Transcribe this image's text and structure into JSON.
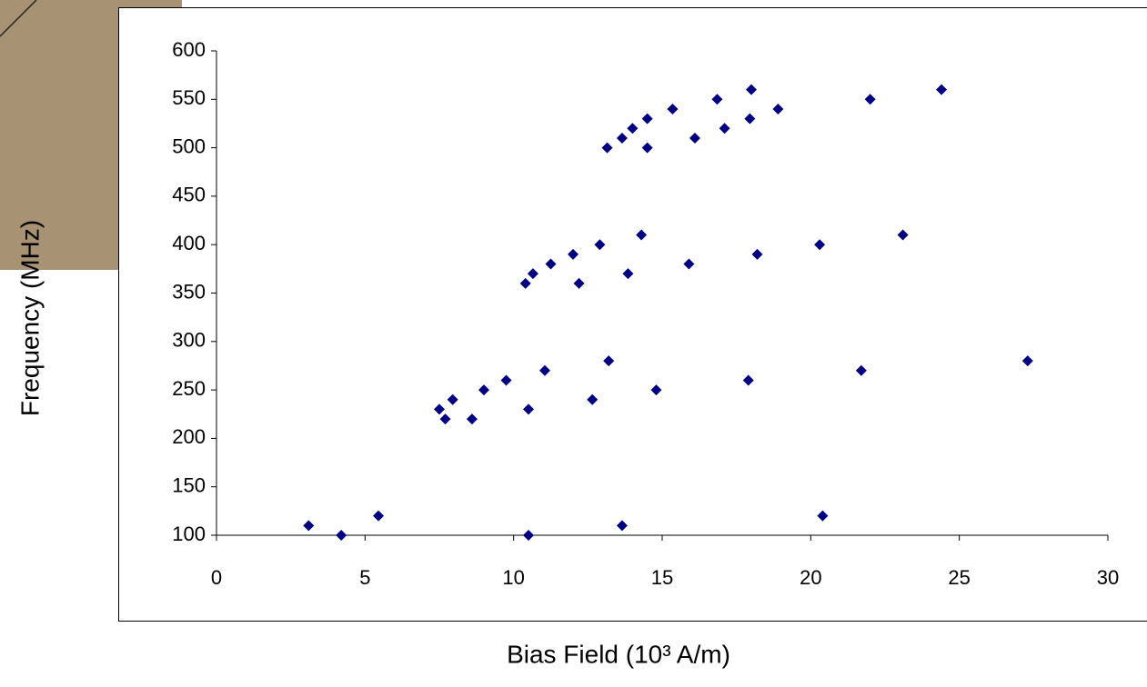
{
  "chart_data": {
    "type": "scatter",
    "x_label": "Bias Field (10³ A/m)",
    "y_label": "Frequency (MHz)",
    "xlim": [
      0,
      30
    ],
    "xticks": [
      0,
      5,
      10,
      15,
      20,
      25,
      30
    ],
    "ylim": [
      100,
      600
    ],
    "yticks": [
      100,
      150,
      200,
      250,
      300,
      350,
      400,
      450,
      500,
      550,
      600
    ],
    "grid": false,
    "color": "#000080",
    "x": [
      3.1,
      4.2,
      5.45,
      7.5,
      7.7,
      7.95,
      8.6,
      9.0,
      9.75,
      10.5,
      10.5,
      11.05,
      12.65,
      13.2,
      13.65,
      14.8,
      17.9,
      20.4,
      21.7,
      27.3,
      10.4,
      10.65,
      11.25,
      12.0,
      12.2,
      12.9,
      13.85,
      14.3,
      15.9,
      18.2,
      20.3,
      23.1,
      13.15,
      13.65,
      14.0,
      14.5,
      14.5,
      15.35,
      16.1,
      16.85,
      17.1,
      18.0,
      17.95,
      18.9,
      22.0,
      24.4
    ],
    "values": [
      110,
      100,
      120,
      230,
      220,
      240,
      220,
      250,
      260,
      230,
      100,
      270,
      240,
      280,
      110,
      250,
      260,
      120,
      270,
      280,
      360,
      370,
      380,
      390,
      360,
      400,
      370,
      410,
      380,
      390,
      400,
      410,
      500,
      510,
      520,
      530,
      500,
      540,
      510,
      550,
      520,
      560,
      530,
      540,
      550,
      560
    ]
  }
}
